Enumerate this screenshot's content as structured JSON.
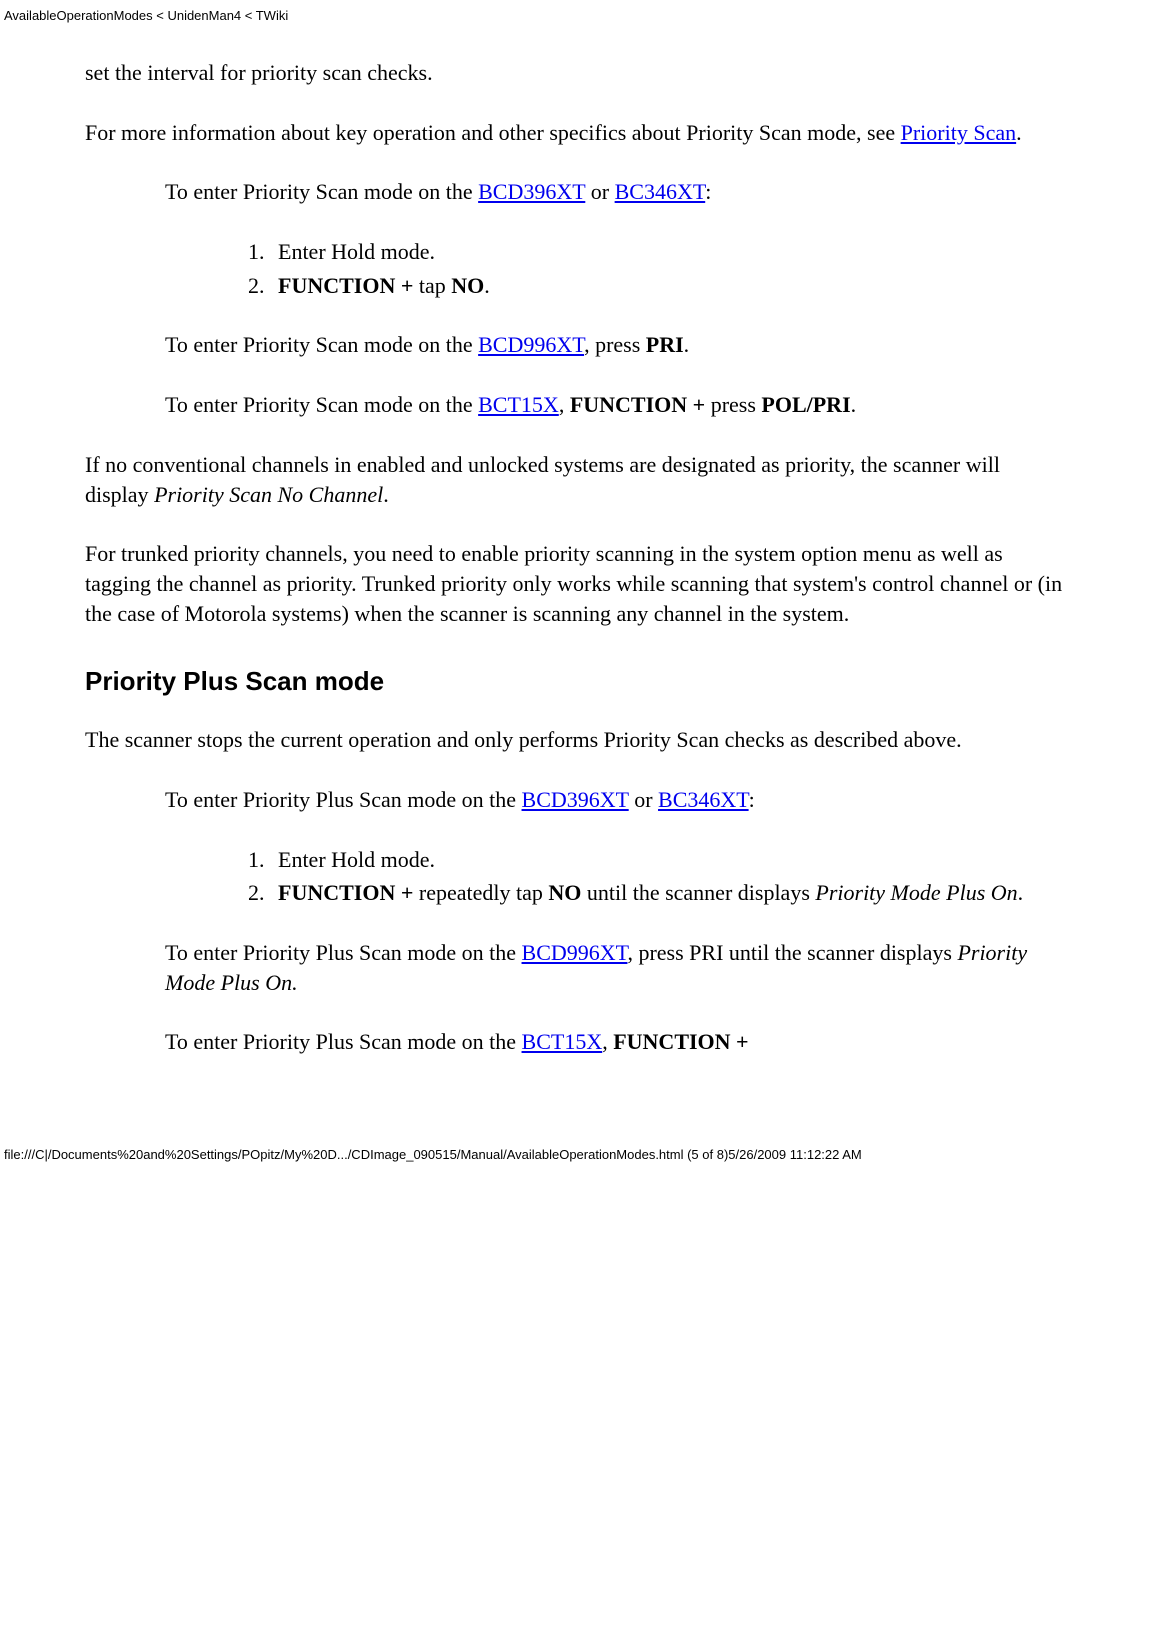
{
  "header": {
    "breadcrumb": "AvailableOperationModes < UnidenMan4 < TWiki"
  },
  "body": {
    "p1_a": "set the interval for priority scan checks.",
    "p2_a": "For more information about key operation and other specifics about Priority Scan mode, see ",
    "p2_link": "Priority Scan",
    "p2_b": ".",
    "p3_a": "To enter Priority Scan mode on the ",
    "p3_link1": "BCD396XT",
    "p3_b": " or ",
    "p3_link2": "BC346XT",
    "p3_c": ":",
    "ol1": {
      "li1": "Enter Hold mode.",
      "li2_b1": "FUNCTION +",
      "li2_a": " tap ",
      "li2_b2": "NO",
      "li2_b": "."
    },
    "p4_a": "To enter Priority Scan mode on the ",
    "p4_link": "BCD996XT",
    "p4_b": ", press ",
    "p4_bold": "PRI",
    "p4_c": ".",
    "p5_a": "To enter Priority Scan mode on the ",
    "p5_link": "BCT15X",
    "p5_b": ", ",
    "p5_bold1": "FUNCTION +",
    "p5_c": " press ",
    "p5_bold2": "POL/PRI",
    "p5_d": ".",
    "p6_a": "If no conventional channels in enabled and unlocked systems are designated as priority, the scanner will display ",
    "p6_i": "Priority Scan No Channel",
    "p6_b": ".",
    "p7": "For trunked priority channels, you need to enable priority scanning in the system option menu as well as tagging the channel as priority. Trunked priority only works while scanning that system's control channel or (in the case of Motorola systems) when the scanner is scanning any channel in the system.",
    "h2": "Priority Plus Scan mode",
    "p8": "The scanner stops the current operation and only performs Priority Scan checks as described above.",
    "p9_a": "To enter Priority Plus Scan mode on the ",
    "p9_link1": "BCD396XT",
    "p9_b": " or ",
    "p9_link2": "BC346XT",
    "p9_c": ":",
    "ol2": {
      "li1": "Enter Hold mode.",
      "li2_b1": "FUNCTION +",
      "li2_a": " repeatedly tap ",
      "li2_b2": "NO",
      "li2_b": " until the scanner displays ",
      "li2_i": "Priority Mode Plus On",
      "li2_c": "."
    },
    "p10_a": "To enter Priority Plus Scan mode on the ",
    "p10_link": "BCD996XT",
    "p10_b": ", press PRI until the scanner displays ",
    "p10_i": "Priority Mode Plus On.",
    "p11_a": "To enter Priority Plus Scan mode on the ",
    "p11_link": "BCT15X",
    "p11_b": ", ",
    "p11_bold": "FUNCTION +"
  },
  "footer": {
    "path": "file:///C|/Documents%20and%20Settings/POpitz/My%20D.../CDImage_090515/Manual/AvailableOperationModes.html (5 of 8)5/26/2009 11:12:22 AM"
  }
}
